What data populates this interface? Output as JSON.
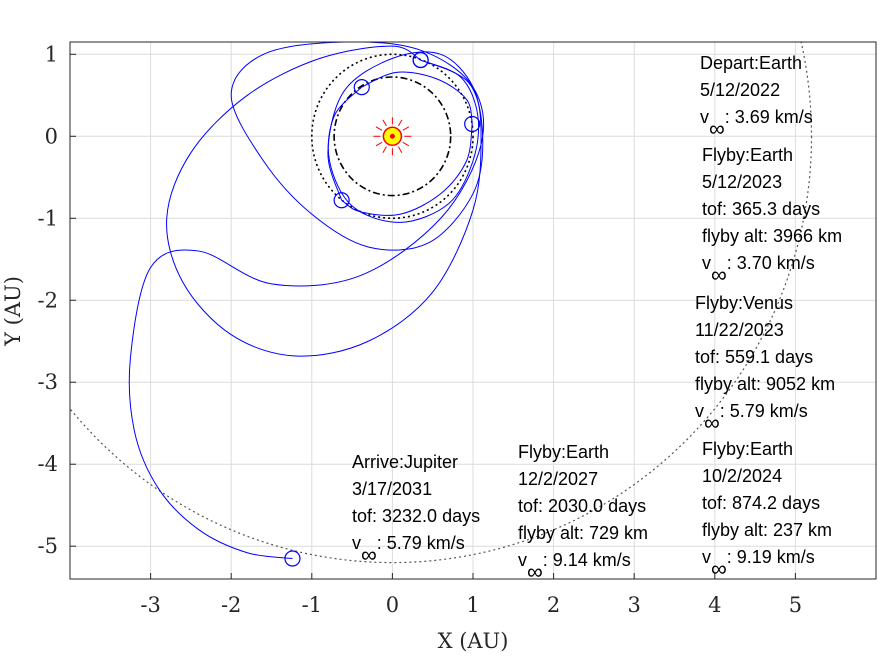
{
  "chart_data": {
    "type": "line",
    "title": "",
    "xlabel": "X (AU)",
    "ylabel": "Y (AU)",
    "xlim": [
      -4,
      6
    ],
    "ylim": [
      -5.4,
      1.15
    ],
    "grid": true,
    "x_ticks": [
      -3,
      -2,
      -1,
      0,
      1,
      2,
      3,
      4,
      5
    ],
    "y_ticks": [
      1,
      0,
      -1,
      -2,
      -3,
      -4,
      -5
    ],
    "x_tick_labels": [
      "-3",
      "-2",
      "-1",
      "0",
      "1",
      "2",
      "3",
      "4",
      "5"
    ],
    "y_tick_labels": [
      "1",
      "0",
      "-1",
      "-2",
      "-3",
      "-4",
      "-5"
    ],
    "colors": {
      "trajectory": "#0000ff",
      "planet_orbit": "#000000",
      "jupiter_orbit": "#555555",
      "sun": "#ff0000",
      "sun_fill": "#ffff00"
    },
    "sun": {
      "x": 0,
      "y": 0
    },
    "planet_orbits": [
      {
        "planet": "Venus",
        "radius": 0.723,
        "style": "dash-dot"
      },
      {
        "planet": "Earth",
        "radius": 1.0,
        "style": "dotted"
      },
      {
        "planet": "Jupiter",
        "radius": 5.2,
        "style": "dotted"
      }
    ],
    "encounter_points": [
      {
        "event": "Depart:Earth",
        "x": 0.35,
        "y": 0.93
      },
      {
        "event": "Flyby:Earth 2023",
        "x": -0.38,
        "y": 0.6
      },
      {
        "event": "Flyby:Venus",
        "x": 0.99,
        "y": 0.15
      },
      {
        "event": "Flyby:Earth 2024",
        "x": -0.63,
        "y": -0.78
      },
      {
        "event": "Flyby:Earth 2027",
        "x": 0.35,
        "y": 0.93
      },
      {
        "event": "Arrive:Jupiter",
        "x": -1.24,
        "y": -5.15
      }
    ],
    "trajectory_legs": [
      {
        "leg": "Earth-Earth",
        "points": [
          [
            0.35,
            0.93
          ],
          [
            0.85,
            0.72
          ],
          [
            1.06,
            0.25
          ],
          [
            1.0,
            -0.3
          ],
          [
            0.7,
            -0.82
          ],
          [
            0.1,
            -1.05
          ],
          [
            -0.5,
            -0.85
          ],
          [
            -0.78,
            -0.3
          ],
          [
            -0.72,
            0.25
          ],
          [
            -0.38,
            0.6
          ]
        ]
      },
      {
        "leg": "Earth-Venus",
        "points": [
          [
            -0.38,
            0.6
          ],
          [
            0.05,
            0.78
          ],
          [
            0.55,
            0.7
          ],
          [
            0.92,
            0.45
          ],
          [
            0.99,
            0.15
          ]
        ]
      },
      {
        "leg": "Venus-Earth",
        "points": [
          [
            0.99,
            0.15
          ],
          [
            0.92,
            -0.3
          ],
          [
            0.6,
            -0.7
          ],
          [
            0.1,
            -0.95
          ],
          [
            -0.4,
            -0.92
          ],
          [
            -0.63,
            -0.78
          ]
        ]
      },
      {
        "leg": "Earth-Earth long",
        "points": [
          [
            -0.63,
            -0.78
          ],
          [
            -0.8,
            -0.2
          ],
          [
            -0.6,
            0.55
          ],
          [
            0.0,
            0.95
          ],
          [
            0.6,
            1.0
          ],
          [
            1.0,
            0.6
          ],
          [
            1.1,
            0.0
          ],
          [
            1.0,
            -0.9
          ],
          [
            0.5,
            -1.9
          ],
          [
            -0.3,
            -2.5
          ],
          [
            -1.2,
            -2.68
          ],
          [
            -2.0,
            -2.42
          ],
          [
            -2.6,
            -1.78
          ],
          [
            -2.8,
            -1.0
          ],
          [
            -2.5,
            -0.2
          ],
          [
            -1.8,
            0.5
          ],
          [
            -0.9,
            0.95
          ],
          [
            0.0,
            1.1
          ],
          [
            0.35,
            0.93
          ]
        ]
      },
      {
        "leg": "Earth-Jupiter",
        "points": [
          [
            0.35,
            0.93
          ],
          [
            0.95,
            0.65
          ],
          [
            1.12,
            0.0
          ],
          [
            1.0,
            -0.7
          ],
          [
            0.45,
            -1.3
          ],
          [
            -0.3,
            -1.35
          ],
          [
            -1.0,
            -0.95
          ],
          [
            -1.6,
            -0.3
          ],
          [
            -2.0,
            0.5
          ],
          [
            -1.6,
            1.0
          ],
          [
            -0.6,
            1.15
          ],
          [
            0.35,
            1.05
          ],
          [
            1.0,
            0.6
          ],
          [
            1.1,
            -0.1
          ],
          [
            0.6,
            -1.0
          ],
          [
            -0.4,
            -1.7
          ],
          [
            -1.5,
            -1.8
          ],
          [
            -2.4,
            -1.4
          ],
          [
            -3.0,
            -1.6
          ],
          [
            -3.25,
            -2.7
          ],
          [
            -3.2,
            -3.6
          ],
          [
            -2.9,
            -4.3
          ],
          [
            -2.4,
            -4.8
          ],
          [
            -1.8,
            -5.08
          ],
          [
            -1.24,
            -5.15
          ]
        ]
      }
    ],
    "annotations": [
      {
        "lines": [
          "Depart:Earth",
          "5/12/2022"
        ],
        "vinf": "3.69 km/s"
      },
      {
        "lines": [
          "Flyby:Earth",
          "5/12/2023",
          "tof: 365.3 days",
          "flyby alt: 3966 km"
        ],
        "vinf": "3.70 km/s"
      },
      {
        "lines": [
          "Flyby:Venus",
          "11/22/2023",
          "tof: 559.1 days",
          "flyby alt: 9052 km"
        ],
        "vinf": "5.79 km/s"
      },
      {
        "lines": [
          "Flyby:Earth",
          "10/2/2024",
          "tof: 874.2 days",
          "flyby alt: 237 km"
        ],
        "vinf": "9.19 km/s"
      },
      {
        "lines": [
          "Flyby:Earth",
          "12/2/2027",
          "tof: 2030.0 days",
          "flyby alt: 729 km"
        ],
        "vinf": "9.14 km/s"
      },
      {
        "lines": [
          "Arrive:Jupiter",
          "3/17/2031",
          "tof: 3232.0 days"
        ],
        "vinf": "5.79 km/s"
      }
    ],
    "vinf_symbol": "v",
    "vinf_subscript": "∞"
  }
}
